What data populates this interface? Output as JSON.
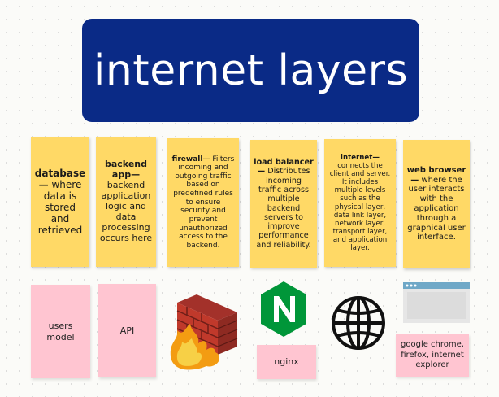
{
  "title": "internet layers",
  "notes": [
    {
      "bold": "database—",
      "text": "where data is stored and retrieved"
    },
    {
      "bold": "backend app—",
      "text": "backend application logic and data processing occurs here"
    },
    {
      "bold": "firewall—",
      "text": "Filters incoming and outgoing traffic based on predefined rules to ensure security and prevent unauthorized access to the backend."
    },
    {
      "bold": "load balancer—",
      "text": "Distributes incoming traffic across multiple backend servers to improve performance and reliability."
    },
    {
      "bold": "internet—",
      "text": "connects the client and server. It includes multiple levels such as the physical layer, data link layer, network layer, transport layer, and application layer."
    },
    {
      "bold": "web browser—",
      "text": "where the user interacts with the application through a graphical user interface."
    }
  ],
  "labels": {
    "users_model": "users model",
    "api": "API",
    "nginx": "nginx",
    "browsers": "google chrome, firefox, internet explorer"
  },
  "icons": [
    "firewall-icon",
    "nginx-logo-icon",
    "globe-icon",
    "browser-window-icon"
  ],
  "colors": {
    "title_bg": "#0a2a86",
    "note": "#ffd966",
    "label": "#ffc5d1",
    "nginx_green": "#009639"
  }
}
